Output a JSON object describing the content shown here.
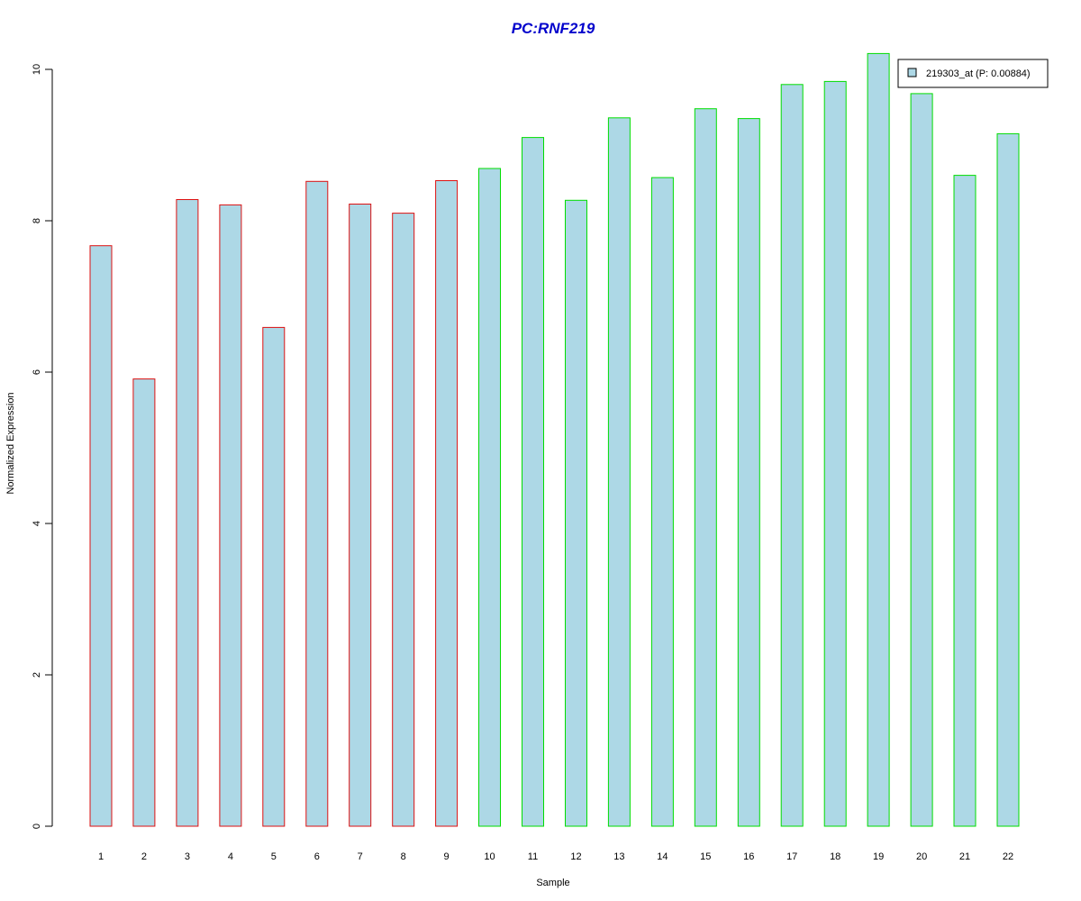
{
  "chart_data": {
    "type": "bar",
    "title": "PC:RNF219",
    "xlabel": "Sample",
    "ylabel": "Normalized Expression",
    "ylim": [
      0,
      10.2
    ],
    "yticks": [
      "0",
      "2",
      "4",
      "6",
      "8",
      "10"
    ],
    "categories": [
      "1",
      "2",
      "3",
      "4",
      "5",
      "6",
      "7",
      "8",
      "9",
      "10",
      "11",
      "12",
      "13",
      "14",
      "15",
      "16",
      "17",
      "18",
      "19",
      "20",
      "21",
      "22"
    ],
    "series": [
      {
        "name": "219303_at (P: 0.00884)",
        "fill": "#add8e6",
        "values": [
          7.67,
          5.91,
          8.28,
          8.21,
          6.59,
          8.52,
          8.22,
          8.1,
          8.53,
          8.69,
          9.1,
          8.27,
          9.36,
          8.57,
          9.48,
          9.35,
          9.8,
          9.84,
          10.21,
          9.68,
          8.6,
          9.15
        ]
      }
    ],
    "groups": [
      {
        "samples": [
          1,
          2,
          3,
          4,
          5,
          6,
          7,
          8,
          9
        ],
        "border_color": "#dd1111"
      },
      {
        "samples": [
          10,
          11,
          12,
          13,
          14,
          15,
          16,
          17,
          18,
          19,
          20,
          21,
          22
        ],
        "border_color": "#00dd00"
      }
    ],
    "grid": false,
    "legend_position": "top-right",
    "title_color": "#0000cc"
  }
}
